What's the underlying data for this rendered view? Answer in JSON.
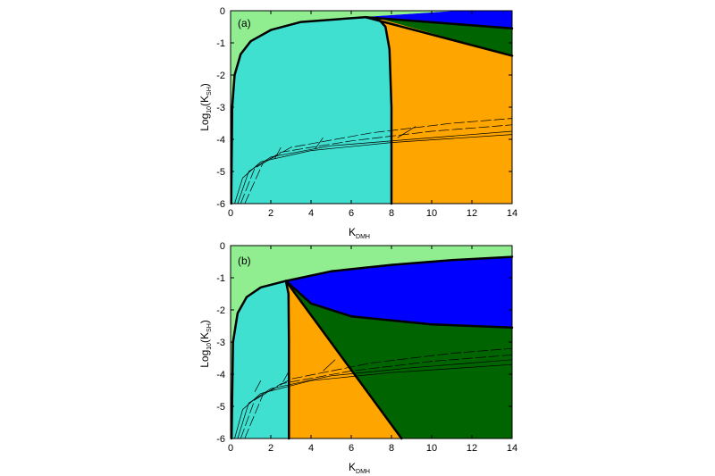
{
  "colors": {
    "light_green": "#90EE90",
    "turquoise": "#40E0D0",
    "orange": "#FFA500",
    "blue": "#0000FF",
    "dark_green": "#006400",
    "boundary": "#000000",
    "background": "#ffffff"
  },
  "chart_data": [
    {
      "type": "area",
      "panel_label": "(a)",
      "xlabel_main": "K",
      "xlabel_sub": "DMH",
      "ylabel_pre": "Log",
      "ylabel_sub1": "10",
      "ylabel_mid": "(K",
      "ylabel_sub2": "SH",
      "ylabel_post": ")",
      "xlim": [
        0,
        14
      ],
      "ylim": [
        -6,
        0
      ],
      "xticks": [
        "0",
        "2",
        "4",
        "6",
        "8",
        "10",
        "12",
        "14"
      ],
      "yticks": [
        "0",
        "-1",
        "-2",
        "-3",
        "-4",
        "-5",
        "-6"
      ],
      "regions": [
        {
          "name": "light-green",
          "color_key": "light_green",
          "polygon": [
            [
              0,
              -6
            ],
            [
              0,
              0
            ],
            [
              14,
              0
            ],
            [
              14,
              -0.55
            ],
            [
              11.5,
              0
            ],
            [
              6.7,
              -0.2
            ],
            [
              3.5,
              -0.35
            ],
            [
              2,
              -0.6
            ],
            [
              1,
              -0.95
            ],
            [
              0.5,
              -1.35
            ],
            [
              0.2,
              -2.0
            ],
            [
              0.08,
              -3.0
            ],
            [
              0.03,
              -6
            ]
          ]
        },
        {
          "name": "turquoise",
          "color_key": "turquoise",
          "polygon": [
            [
              0.03,
              -6
            ],
            [
              0.08,
              -3.0
            ],
            [
              0.2,
              -2.0
            ],
            [
              0.5,
              -1.35
            ],
            [
              1,
              -0.95
            ],
            [
              2,
              -0.6
            ],
            [
              3.5,
              -0.35
            ],
            [
              6.7,
              -0.2
            ],
            [
              7.3,
              -0.22
            ],
            [
              7.7,
              -0.5
            ],
            [
              7.9,
              -1.2
            ],
            [
              8.0,
              -3.0
            ],
            [
              8.0,
              -6
            ]
          ]
        },
        {
          "name": "orange",
          "color_key": "orange",
          "polygon": [
            [
              8.0,
              -6
            ],
            [
              8.0,
              -3.0
            ],
            [
              7.9,
              -1.2
            ],
            [
              7.7,
              -0.5
            ],
            [
              7.3,
              -0.22
            ],
            [
              14,
              -1.4
            ],
            [
              14,
              -6
            ]
          ]
        },
        {
          "name": "dark-green",
          "color_key": "dark_green",
          "polygon": [
            [
              7.3,
              -0.22
            ],
            [
              14,
              -0.55
            ],
            [
              14,
              -1.4
            ]
          ]
        },
        {
          "name": "blue",
          "color_key": "blue",
          "polygon": [
            [
              6.7,
              -0.2
            ],
            [
              11.5,
              0
            ],
            [
              14,
              0
            ],
            [
              14,
              -0.55
            ],
            [
              7.3,
              -0.22
            ]
          ]
        }
      ],
      "boundaries": [
        [
          [
            0.03,
            -6
          ],
          [
            0.08,
            -3.0
          ],
          [
            0.2,
            -2.0
          ],
          [
            0.5,
            -1.35
          ],
          [
            1,
            -0.95
          ],
          [
            2,
            -0.6
          ],
          [
            3.5,
            -0.35
          ],
          [
            6.7,
            -0.2
          ]
        ],
        [
          [
            7.3,
            -0.22
          ],
          [
            7.7,
            -0.5
          ],
          [
            7.9,
            -1.2
          ],
          [
            8.0,
            -3.0
          ],
          [
            8.0,
            -6
          ]
        ],
        [
          [
            6.7,
            -0.2
          ],
          [
            14,
            -0.55
          ]
        ],
        [
          [
            6.7,
            -0.2
          ],
          [
            14,
            -1.4
          ]
        ]
      ],
      "trajectories": [
        {
          "dash": false,
          "points": [
            [
              0.2,
              -6
            ],
            [
              0.6,
              -5.2
            ],
            [
              1.5,
              -4.7
            ],
            [
              4,
              -4.35
            ],
            [
              8,
              -4.1
            ],
            [
              14,
              -3.85
            ]
          ]
        },
        {
          "dash": false,
          "points": [
            [
              0.35,
              -6
            ],
            [
              0.9,
              -5.0
            ],
            [
              2,
              -4.55
            ],
            [
              5,
              -4.2
            ],
            [
              9,
              -4.0
            ],
            [
              14,
              -3.75
            ]
          ]
        },
        {
          "dash": true,
          "points": [
            [
              0.5,
              -6
            ],
            [
              1.2,
              -4.9
            ],
            [
              2.5,
              -4.4
            ],
            [
              6,
              -4.05
            ],
            [
              10,
              -3.75
            ],
            [
              14,
              -3.55
            ]
          ]
        },
        {
          "dash": true,
          "points": [
            [
              0.7,
              -6
            ],
            [
              1.6,
              -4.75
            ],
            [
              3,
              -4.25
            ],
            [
              7,
              -3.8
            ],
            [
              11,
              -3.5
            ],
            [
              14,
              -3.35
            ]
          ]
        }
      ],
      "cross_ticks": [
        [
          [
            2.2,
            -4.6
          ],
          [
            2.5,
            -4.25
          ]
        ],
        [
          [
            4.2,
            -4.3
          ],
          [
            4.6,
            -3.95
          ]
        ],
        [
          [
            8.3,
            -3.95
          ],
          [
            9.2,
            -3.6
          ]
        ]
      ]
    },
    {
      "type": "area",
      "panel_label": "(b)",
      "xlabel_main": "K",
      "xlabel_sub": "DMH",
      "ylabel_pre": "Log",
      "ylabel_sub1": "10",
      "ylabel_mid": "(K",
      "ylabel_sub2": "SH",
      "ylabel_post": ")",
      "xlim": [
        0,
        14
      ],
      "ylim": [
        -6,
        0
      ],
      "xticks": [
        "0",
        "2",
        "4",
        "6",
        "8",
        "10",
        "12",
        "14"
      ],
      "yticks": [
        "0",
        "-1",
        "-2",
        "-3",
        "-4",
        "-5",
        "-6"
      ],
      "regions": [
        {
          "name": "light-green",
          "color_key": "light_green",
          "polygon": [
            [
              0,
              -6
            ],
            [
              0,
              0
            ],
            [
              14,
              0
            ],
            [
              14,
              -0.35
            ],
            [
              11,
              -0.45
            ],
            [
              8,
              -0.6
            ],
            [
              5,
              -0.8
            ],
            [
              2.75,
              -1.1
            ],
            [
              1.5,
              -1.3
            ],
            [
              0.8,
              -1.6
            ],
            [
              0.35,
              -2.1
            ],
            [
              0.12,
              -3.0
            ],
            [
              0.05,
              -6
            ]
          ]
        },
        {
          "name": "blue",
          "color_key": "blue",
          "polygon": [
            [
              2.75,
              -1.1
            ],
            [
              5,
              -0.8
            ],
            [
              8,
              -0.6
            ],
            [
              11,
              -0.45
            ],
            [
              14,
              -0.35
            ],
            [
              14,
              -2.55
            ],
            [
              10,
              -2.45
            ],
            [
              6,
              -2.2
            ],
            [
              4,
              -1.8
            ],
            [
              2.75,
              -1.1
            ]
          ]
        },
        {
          "name": "dark-green",
          "color_key": "dark_green",
          "polygon": [
            [
              2.75,
              -1.1
            ],
            [
              4,
              -1.8
            ],
            [
              6,
              -2.2
            ],
            [
              10,
              -2.45
            ],
            [
              14,
              -2.55
            ],
            [
              14,
              -6
            ],
            [
              8.5,
              -6
            ]
          ]
        },
        {
          "name": "turquoise",
          "color_key": "turquoise",
          "polygon": [
            [
              0.05,
              -6
            ],
            [
              0.12,
              -3.0
            ],
            [
              0.35,
              -2.1
            ],
            [
              0.8,
              -1.6
            ],
            [
              1.5,
              -1.3
            ],
            [
              2.75,
              -1.1
            ],
            [
              2.88,
              -1.5
            ],
            [
              2.9,
              -3.0
            ],
            [
              2.9,
              -6
            ]
          ]
        },
        {
          "name": "orange",
          "color_key": "orange",
          "polygon": [
            [
              2.9,
              -6
            ],
            [
              2.9,
              -3.0
            ],
            [
              2.88,
              -1.5
            ],
            [
              2.75,
              -1.1
            ],
            [
              8.5,
              -6
            ]
          ]
        }
      ],
      "boundaries": [
        [
          [
            0.05,
            -6
          ],
          [
            0.12,
            -3.0
          ],
          [
            0.35,
            -2.1
          ],
          [
            0.8,
            -1.6
          ],
          [
            1.5,
            -1.3
          ],
          [
            2.75,
            -1.1
          ],
          [
            5,
            -0.8
          ],
          [
            8,
            -0.6
          ],
          [
            11,
            -0.45
          ],
          [
            14,
            -0.35
          ]
        ],
        [
          [
            2.75,
            -1.1
          ],
          [
            2.88,
            -1.5
          ],
          [
            2.9,
            -3.0
          ],
          [
            2.9,
            -6
          ]
        ],
        [
          [
            2.75,
            -1.1
          ],
          [
            8.5,
            -6
          ]
        ],
        [
          [
            2.75,
            -1.1
          ],
          [
            4,
            -1.8
          ],
          [
            6,
            -2.2
          ],
          [
            10,
            -2.45
          ],
          [
            14,
            -2.55
          ]
        ]
      ],
      "trajectories": [
        {
          "dash": false,
          "points": [
            [
              0.2,
              -6
            ],
            [
              0.6,
              -5.1
            ],
            [
              1.5,
              -4.6
            ],
            [
              4,
              -4.2
            ],
            [
              8,
              -3.95
            ],
            [
              14,
              -3.7
            ]
          ]
        },
        {
          "dash": false,
          "points": [
            [
              0.35,
              -6
            ],
            [
              0.9,
              -4.9
            ],
            [
              2,
              -4.45
            ],
            [
              5,
              -4.05
            ],
            [
              9,
              -3.8
            ],
            [
              14,
              -3.55
            ]
          ]
        },
        {
          "dash": true,
          "points": [
            [
              0.5,
              -6
            ],
            [
              1.2,
              -4.8
            ],
            [
              2.5,
              -4.3
            ],
            [
              6,
              -3.9
            ],
            [
              10,
              -3.6
            ],
            [
              14,
              -3.4
            ]
          ]
        },
        {
          "dash": true,
          "points": [
            [
              0.7,
              -6
            ],
            [
              1.6,
              -4.65
            ],
            [
              3,
              -4.15
            ],
            [
              7,
              -3.65
            ],
            [
              11,
              -3.35
            ],
            [
              14,
              -3.2
            ]
          ]
        }
      ],
      "cross_ticks": [
        [
          [
            1.2,
            -4.55
          ],
          [
            1.5,
            -4.2
          ]
        ],
        [
          [
            2.6,
            -4.25
          ],
          [
            2.9,
            -3.9
          ]
        ],
        [
          [
            4.6,
            -3.9
          ],
          [
            5.2,
            -3.55
          ]
        ]
      ]
    }
  ]
}
